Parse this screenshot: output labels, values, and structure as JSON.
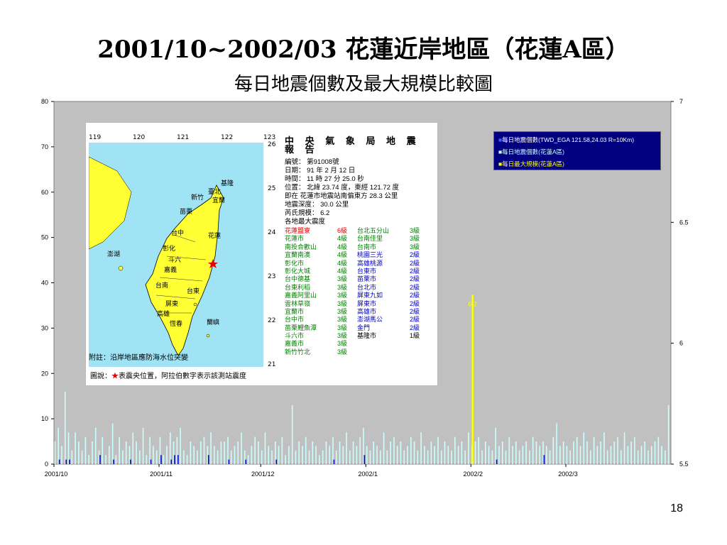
{
  "slide": {
    "title": "2001/10~2002/03 花蓮近岸地區（花蓮A區）",
    "subtitle": "每日地震個數及最大規模比較圖",
    "number": "18"
  },
  "colors": {
    "plot_bg": "#c0c0c0",
    "series_total": "#0000cc",
    "series_area": "#ccffff",
    "series_max": "#ffff00",
    "legend_bg": "#000080"
  },
  "chart_data": {
    "type": "bar",
    "x_tick_labels": [
      "2001/10",
      "2001/11",
      "2001/12",
      "2002/1",
      "2002/2",
      "2002/3"
    ],
    "y_left": {
      "range": [
        0,
        80
      ],
      "ticks": [
        0,
        10,
        20,
        30,
        40,
        50,
        60,
        70,
        80
      ]
    },
    "y_right": {
      "range": [
        5.5,
        7
      ],
      "tick_labels": [
        "5.5",
        "6",
        "6.5",
        "7"
      ]
    },
    "grid": false,
    "legend_position": "top-right",
    "days": 182,
    "series": [
      {
        "name": "每日地震個數(TWD_EGA 121.58,24.03 R=10Km)",
        "axis": "left",
        "values": [
          0,
          1,
          0,
          1,
          1,
          0,
          0,
          0,
          0,
          0,
          0,
          0,
          0,
          2,
          0,
          0,
          0,
          1,
          0,
          0,
          0,
          0,
          1,
          0,
          0,
          0,
          0,
          0,
          1,
          0,
          0,
          2,
          0,
          0,
          1,
          2,
          2,
          0,
          0,
          0,
          0,
          0,
          0,
          0,
          0,
          2,
          0,
          0,
          0,
          0,
          0,
          1,
          0,
          0,
          0,
          0,
          1,
          0,
          0,
          0,
          0,
          0,
          0,
          0,
          0,
          1,
          0,
          0,
          0,
          0,
          0,
          0,
          0,
          0,
          0,
          0,
          0,
          0,
          0,
          0,
          0,
          0,
          1,
          0,
          0,
          0,
          0,
          0,
          0,
          0,
          0,
          2,
          0,
          0,
          0,
          0,
          0,
          0,
          0,
          0,
          0,
          0,
          0,
          0,
          0,
          0,
          0,
          0,
          0,
          0,
          0,
          0,
          0,
          0,
          0,
          0,
          0,
          0,
          0,
          0,
          0,
          0,
          0,
          0,
          0,
          0,
          0,
          0,
          0,
          0,
          1,
          0,
          0,
          0,
          0,
          0,
          0,
          0,
          0,
          0,
          0,
          0,
          0,
          0,
          2,
          0,
          0,
          0,
          0,
          0,
          0,
          0,
          0,
          0,
          0,
          0,
          0,
          0,
          0,
          0,
          0,
          0,
          0,
          0,
          0,
          0,
          0,
          0,
          0,
          0,
          0,
          0,
          0,
          0,
          0,
          0,
          0,
          0,
          0,
          0,
          0,
          0
        ]
      },
      {
        "name": "每日地震個數(花蓮A區)",
        "axis": "left",
        "values": [
          5,
          8,
          4,
          16,
          7,
          3,
          7,
          5,
          3,
          6,
          2,
          5,
          8,
          3,
          6,
          2,
          4,
          9,
          2,
          6,
          3,
          5,
          4,
          7,
          5,
          3,
          8,
          2,
          6,
          4,
          3,
          6,
          2,
          4,
          7,
          5,
          6,
          8,
          3,
          2,
          5,
          4,
          3,
          5,
          6,
          4,
          7,
          4,
          3,
          5,
          5,
          6,
          3,
          4,
          5,
          7,
          3,
          2,
          4,
          6,
          5,
          3,
          7,
          4,
          3,
          5,
          4,
          6,
          2,
          4,
          13,
          3,
          5,
          4,
          6,
          3,
          5,
          4,
          2,
          3,
          5,
          4,
          6,
          3,
          5,
          4,
          7,
          3,
          5,
          4,
          6,
          8,
          4,
          3,
          5,
          4,
          3,
          7,
          3,
          5,
          6,
          4,
          5,
          3,
          4,
          6,
          5,
          3,
          7,
          4,
          3,
          5,
          4,
          6,
          3,
          5,
          4,
          3,
          6,
          4,
          5,
          3,
          7,
          4,
          5,
          6,
          3,
          5,
          4,
          3,
          8,
          4,
          5,
          3,
          6,
          4,
          5,
          3,
          4,
          5,
          3,
          6,
          5,
          4,
          5,
          4,
          3,
          6,
          9,
          4,
          5,
          4,
          3,
          5,
          6,
          4,
          7,
          5,
          3,
          6,
          4,
          5,
          7,
          3,
          4,
          5,
          6,
          3,
          7,
          4,
          5,
          6,
          3,
          4,
          5,
          3,
          4,
          5,
          6,
          4,
          3,
          13
        ]
      },
      {
        "name": "每日最大規模(花蓮A區)",
        "axis": "right",
        "peak_day": 123,
        "peak_value": 6.2,
        "peak_label": "6.2"
      }
    ]
  },
  "report": {
    "lon_labels": [
      "119",
      "120",
      "121",
      "122",
      "123"
    ],
    "lat_labels": [
      "26",
      "25",
      "24",
      "23",
      "22",
      "21"
    ],
    "map_labels": [
      "基隆",
      "臺北",
      "宜蘭",
      "苗栗",
      "台中",
      "花蓮",
      "澎湖",
      "彰化",
      "斗六",
      "嘉義",
      "台南",
      "台東",
      "屏東",
      "高雄",
      "恆春",
      "蘭嶼",
      "新竹"
    ],
    "title": "中 央 氣 象 局 地 震 報 告",
    "lines": [
      "編號： 第91008號",
      "日期： 91 年 2 月 12 日",
      "時間： 11 時 27 分 25.0 秒",
      "位置： 北緯 23.74 度，東經 121.72 度",
      "即在 花蓮市地震站南偏東方 28.3 公里",
      "地震深度： 30.0 公里",
      "芮氏規模： 6.2",
      "各地最大震度"
    ],
    "intensities": [
      [
        {
          "s": "花蓮鹽寮",
          "l": "6級",
          "c": "red"
        },
        {
          "s": "台北五分山",
          "l": "3級",
          "c": "green"
        }
      ],
      [
        {
          "s": "花蓮市",
          "l": "4級",
          "c": "green"
        },
        {
          "s": "台南佳里",
          "l": "3級",
          "c": "green"
        }
      ],
      [
        {
          "s": "南投合歡山",
          "l": "4級",
          "c": "green"
        },
        {
          "s": "台南市",
          "l": "3級",
          "c": "green"
        }
      ],
      [
        {
          "s": "宜蘭南澳",
          "l": "4級",
          "c": "green"
        },
        {
          "s": "桃園三光",
          "l": "2級",
          "c": "blue"
        }
      ],
      [
        {
          "s": "彰化市",
          "l": "4級",
          "c": "green"
        },
        {
          "s": "高雄桃源",
          "l": "2級",
          "c": "blue"
        }
      ],
      [
        {
          "s": "彰化大城",
          "l": "4級",
          "c": "green"
        },
        {
          "s": "台東市",
          "l": "2級",
          "c": "blue"
        }
      ],
      [
        {
          "s": "台中德基",
          "l": "3級",
          "c": "green"
        },
        {
          "s": "苗栗市",
          "l": "2級",
          "c": "blue"
        }
      ],
      [
        {
          "s": "台東利稻",
          "l": "3級",
          "c": "green"
        },
        {
          "s": "台北市",
          "l": "2級",
          "c": "blue"
        }
      ],
      [
        {
          "s": "嘉義阿里山",
          "l": "3級",
          "c": "green"
        },
        {
          "s": "屏東九如",
          "l": "2級",
          "c": "blue"
        }
      ],
      [
        {
          "s": "雲林草嶺",
          "l": "3級",
          "c": "green"
        },
        {
          "s": "屏東市",
          "l": "2級",
          "c": "blue"
        }
      ],
      [
        {
          "s": "宜蘭市",
          "l": "3級",
          "c": "green"
        },
        {
          "s": "高雄市",
          "l": "2級",
          "c": "blue"
        }
      ],
      [
        {
          "s": "台中市",
          "l": "3級",
          "c": "green"
        },
        {
          "s": "澎湖馬公",
          "l": "2級",
          "c": "blue"
        }
      ],
      [
        {
          "s": "苗栗鯉魚潭",
          "l": "3級",
          "c": "green"
        },
        {
          "s": "金門",
          "l": "2級",
          "c": "blue"
        }
      ],
      [
        {
          "s": "斗六市",
          "l": "3級",
          "c": "green"
        },
        {
          "s": "基隆市",
          "l": "1級",
          "c": "black"
        }
      ],
      [
        {
          "s": "嘉義市",
          "l": "3級",
          "c": "green"
        },
        {
          "s": "",
          "l": "",
          "c": "black"
        }
      ],
      [
        {
          "s": "新竹竹北",
          "l": "3級",
          "c": "green"
        },
        {
          "s": "",
          "l": "",
          "c": "black"
        }
      ]
    ],
    "note": "附註：沿岸地區應防海水位突變",
    "legend_note_prefix": "圖說：",
    "legend_note_star": "★",
    "legend_note_suffix": "表震央位置，阿拉伯數字表示該測站震度"
  }
}
